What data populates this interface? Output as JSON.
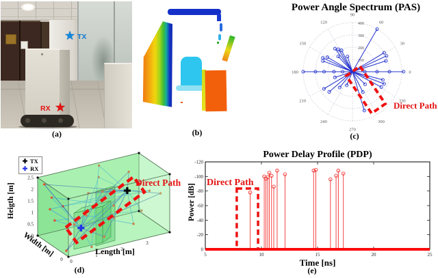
{
  "captions": {
    "a": "(a)",
    "b": "(b)",
    "c": "(c)",
    "d": "(d)",
    "e": "(e)"
  },
  "panel_a": {
    "tx_label": "TX",
    "rx_label": "RX",
    "tx_color": "#0f7ad2",
    "rx_color": "#e51212"
  },
  "colors": {
    "pas_stem": "#2433cc",
    "pdp_red": "#f23030",
    "pdp_baseline": "#fa0a0a",
    "annotation_red": "#ee1111",
    "ray_blue": [
      "#3565cf",
      "#3fa8d8",
      "#2f55bb",
      "#45b8d2"
    ],
    "bounce_dot": "#e2512a",
    "room_green_back": "rgba(120,230,130,0.55)",
    "room_green_side": "rgba(100,215,115,0.5)",
    "room_green_floor": "rgba(140,235,150,0.5)",
    "room_green_front": "rgba(150,240,160,0.28)",
    "room_green_top": "rgba(150,240,160,0.35)"
  },
  "chart_data": [
    {
      "id": "pas",
      "type": "polar-stem",
      "title": "Power Angle Spectrum (PAS)",
      "angle_ticks_deg": [
        0,
        30,
        60,
        90,
        120,
        150,
        180,
        210,
        240,
        270,
        300,
        330
      ],
      "radius_ticks": [
        100,
        200,
        300,
        400
      ],
      "rmax": 400,
      "stems_angle_radius": [
        [
          0,
          100
        ],
        [
          0,
          200
        ],
        [
          0,
          300
        ],
        [
          0,
          415
        ],
        [
          18,
          285
        ],
        [
          25,
          305
        ],
        [
          31,
          300
        ],
        [
          60,
          400
        ],
        [
          108,
          130
        ],
        [
          117,
          195
        ],
        [
          122,
          215
        ],
        [
          127,
          235
        ],
        [
          133,
          170
        ],
        [
          150,
          235
        ],
        [
          155,
          265
        ],
        [
          160,
          255
        ],
        [
          180,
          80
        ],
        [
          180,
          150
        ],
        [
          180,
          230
        ],
        [
          180,
          300
        ],
        [
          180,
          400
        ],
        [
          198,
          150
        ],
        [
          211,
          270
        ],
        [
          221,
          250
        ],
        [
          231,
          165
        ],
        [
          247,
          120
        ],
        [
          287,
          330
        ],
        [
          297,
          185
        ],
        [
          315,
          145
        ],
        [
          332,
          265
        ],
        [
          339,
          275
        ],
        [
          345,
          255
        ]
      ],
      "annotation": {
        "text": "Direct Path",
        "angle_deg": 287
      }
    },
    {
      "id": "rays3d",
      "type": "3d-ray-tracing",
      "legend": [
        {
          "label": "TX",
          "color": "#000000"
        },
        {
          "label": "RX",
          "color": "#2433e8"
        }
      ],
      "xlabel": "Length [m]",
      "ylabel": "Width [m]",
      "zlabel": "Heigth [m]",
      "x_ticks": [
        0,
        1,
        2,
        3
      ],
      "y_ticks": [
        0,
        1,
        2
      ],
      "z_ticks": [
        0,
        0.5,
        1,
        1.5,
        2,
        2.5
      ],
      "room_size_m": {
        "length": 4,
        "width": 2,
        "height": 2.5
      },
      "tx_pos_m": [
        2.9,
        0.95,
        1.65
      ],
      "rx_pos_m": [
        0.8,
        0.5,
        0.8
      ],
      "ray_bounce_points_m": [
        [],
        [
          [
            1.8,
            0,
            1.2
          ]
        ],
        [
          [
            2.0,
            2,
            1.3
          ]
        ],
        [
          [
            1.8,
            1.0,
            2.5
          ]
        ],
        [
          [
            1.9,
            0.8,
            0
          ]
        ],
        [
          [
            0,
            1.2,
            1.5
          ]
        ],
        [
          [
            4.0,
            0.6,
            1.4
          ]
        ],
        [
          [
            3.2,
            0,
            2.0
          ],
          [
            1.0,
            2,
            1.0
          ]
        ],
        [
          [
            3.6,
            2,
            1.8
          ],
          [
            0.35,
            0.2,
            1.2
          ]
        ],
        [
          [
            2.3,
            1.8,
            2.5
          ],
          [
            1.1,
            0.3,
            0
          ]
        ],
        [
          [
            0.2,
            1.9,
            2.2
          ]
        ],
        [
          [
            3.8,
            1.5,
            0.3
          ],
          [
            0.55,
            1.8,
            0.6
          ]
        ],
        [
          [
            1.4,
            0.1,
            2.4
          ]
        ],
        [
          [
            3.3,
            1.2,
            0
          ],
          [
            0.7,
            0,
            1.6
          ]
        ],
        [
          [
            0.1,
            0.3,
            0.1
          ]
        ],
        [
          [
            3.0,
            2,
            0.5
          ],
          [
            0.25,
            1.5,
            1.8
          ]
        ]
      ],
      "annotation": {
        "text": "Direct Path"
      }
    },
    {
      "id": "pdp",
      "type": "stem",
      "title": "Power Delay Profile (PDP)",
      "xlabel": "Time [ns]",
      "ylabel": "Power [dB]",
      "x_ticks": [
        5,
        10,
        15,
        20,
        25
      ],
      "xlim": [
        5,
        25
      ],
      "y_ticks_top_to_bottom": [
        -120,
        -100,
        -80,
        -60,
        -40,
        -20,
        0
      ],
      "y_axis_inverted": true,
      "stems_time_power": [
        [
          9.0,
          -78
        ],
        [
          10.25,
          -100
        ],
        [
          10.4,
          -97
        ],
        [
          10.55,
          -99
        ],
        [
          10.7,
          -105
        ],
        [
          10.9,
          -101
        ],
        [
          11.1,
          -86
        ],
        [
          11.4,
          -108
        ],
        [
          12.1,
          -103
        ],
        [
          14.65,
          -108
        ],
        [
          14.85,
          -109
        ],
        [
          16.15,
          -96
        ],
        [
          16.65,
          -101
        ],
        [
          16.85,
          -108
        ],
        [
          17.3,
          -104
        ]
      ],
      "annotation": {
        "text": "Direct Path",
        "time_window_ns": [
          7.8,
          9.7
        ]
      }
    }
  ]
}
